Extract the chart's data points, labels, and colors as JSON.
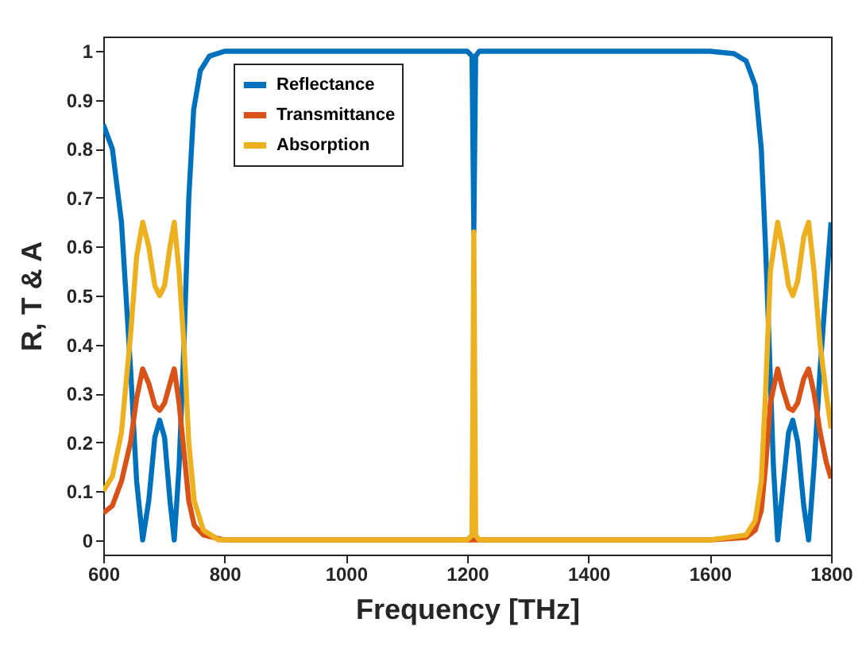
{
  "chart_data": {
    "type": "line",
    "xlabel": "Frequency [THz]",
    "ylabel": "R, T & A",
    "xlim": [
      600,
      1800
    ],
    "xticks": [
      600,
      800,
      1000,
      1200,
      1400,
      1600,
      1800
    ],
    "ylim": [
      -0.03,
      1.03
    ],
    "yticks": [
      0,
      0.1,
      0.2,
      0.3,
      0.4,
      0.5,
      0.6,
      0.7,
      0.8,
      0.9,
      1
    ],
    "grid": false,
    "legend": "top left",
    "line_style": "solid",
    "marker": "none",
    "series": [
      {
        "name": "Reflectance",
        "color": "#0072bd",
        "x": [
          600,
          615,
          630,
          645,
          655,
          665,
          675,
          685,
          693,
          701,
          710,
          717,
          725,
          733,
          741,
          749,
          760,
          775,
          800,
          1000,
          1200,
          1208,
          1211,
          1214,
          1220,
          1400,
          1600,
          1640,
          1660,
          1675,
          1685,
          1692,
          1698,
          1705,
          1712,
          1720,
          1730,
          1737,
          1745,
          1755,
          1763,
          1772,
          1782,
          1792,
          1800
        ],
        "values": [
          0.85,
          0.8,
          0.65,
          0.35,
          0.12,
          0,
          0.08,
          0.21,
          0.245,
          0.21,
          0.08,
          0,
          0.15,
          0.4,
          0.7,
          0.88,
          0.96,
          0.99,
          1,
          1,
          1,
          0.99,
          0.63,
          0.99,
          1,
          1,
          1,
          0.995,
          0.98,
          0.93,
          0.8,
          0.6,
          0.4,
          0.15,
          0,
          0.1,
          0.22,
          0.245,
          0.2,
          0.07,
          0,
          0.15,
          0.35,
          0.52,
          0.65
        ]
      },
      {
        "name": "Transmittance",
        "color": "#d95319",
        "x": [
          600,
          615,
          630,
          645,
          655,
          665,
          675,
          685,
          693,
          701,
          710,
          717,
          725,
          733,
          741,
          750,
          765,
          800,
          1208,
          1211,
          1214,
          1600,
          1660,
          1675,
          1685,
          1692,
          1700,
          1712,
          1720,
          1730,
          1737,
          1745,
          1755,
          1763,
          1772,
          1782,
          1792,
          1800
        ],
        "values": [
          0.055,
          0.07,
          0.12,
          0.2,
          0.29,
          0.35,
          0.32,
          0.275,
          0.265,
          0.28,
          0.32,
          0.35,
          0.28,
          0.18,
          0.08,
          0.03,
          0.01,
          0,
          0,
          0,
          0,
          0,
          0.005,
          0.02,
          0.06,
          0.15,
          0.28,
          0.35,
          0.31,
          0.27,
          0.265,
          0.28,
          0.33,
          0.35,
          0.3,
          0.22,
          0.16,
          0.126
        ]
      },
      {
        "name": "Absorption",
        "color": "#edb120",
        "x": [
          600,
          615,
          630,
          645,
          655,
          665,
          675,
          685,
          693,
          701,
          710,
          717,
          725,
          733,
          741,
          750,
          765,
          790,
          1200,
          1208,
          1211,
          1214,
          1220,
          1600,
          1660,
          1675,
          1685,
          1692,
          1700,
          1712,
          1720,
          1730,
          1737,
          1745,
          1755,
          1763,
          1772,
          1782,
          1792,
          1800
        ],
        "values": [
          0.1,
          0.13,
          0.22,
          0.42,
          0.58,
          0.65,
          0.6,
          0.52,
          0.5,
          0.52,
          0.6,
          0.65,
          0.55,
          0.4,
          0.2,
          0.08,
          0.02,
          0,
          0,
          0.01,
          0.63,
          0.01,
          0,
          0,
          0.01,
          0.04,
          0.12,
          0.3,
          0.55,
          0.65,
          0.6,
          0.52,
          0.5,
          0.53,
          0.62,
          0.65,
          0.55,
          0.4,
          0.3,
          0.228
        ]
      }
    ]
  }
}
